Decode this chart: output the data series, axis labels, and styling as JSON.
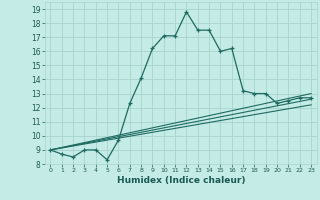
{
  "xlabel": "Humidex (Indice chaleur)",
  "bg_color": "#c5ebe6",
  "grid_color": "#a8d4ce",
  "line_color": "#1e6b62",
  "xlim": [
    -0.5,
    23.5
  ],
  "ylim": [
    8,
    19.5
  ],
  "xticks": [
    0,
    1,
    2,
    3,
    4,
    5,
    6,
    7,
    8,
    9,
    10,
    11,
    12,
    13,
    14,
    15,
    16,
    17,
    18,
    19,
    20,
    21,
    22,
    23
  ],
  "yticks": [
    8,
    9,
    10,
    11,
    12,
    13,
    14,
    15,
    16,
    17,
    18,
    19
  ],
  "main_x": [
    0,
    1,
    2,
    3,
    4,
    5,
    6,
    7,
    8,
    9,
    10,
    11,
    12,
    13,
    14,
    15,
    16,
    17,
    18,
    19,
    20,
    21,
    22,
    23
  ],
  "main_y": [
    9.0,
    8.7,
    8.5,
    9.0,
    9.0,
    8.3,
    9.7,
    12.3,
    14.1,
    16.2,
    17.1,
    17.1,
    18.8,
    17.5,
    17.5,
    16.0,
    16.2,
    13.2,
    13.0,
    13.0,
    12.3,
    12.5,
    12.7,
    12.7
  ],
  "line2_x": [
    0,
    23
  ],
  "line2_y": [
    9.0,
    13.0
  ],
  "line3_x": [
    0,
    23
  ],
  "line3_y": [
    9.0,
    12.6
  ],
  "line4_x": [
    0,
    23
  ],
  "line4_y": [
    9.0,
    12.2
  ],
  "xtick_fontsize": 4.5,
  "ytick_fontsize": 5.5,
  "xlabel_fontsize": 6.5
}
